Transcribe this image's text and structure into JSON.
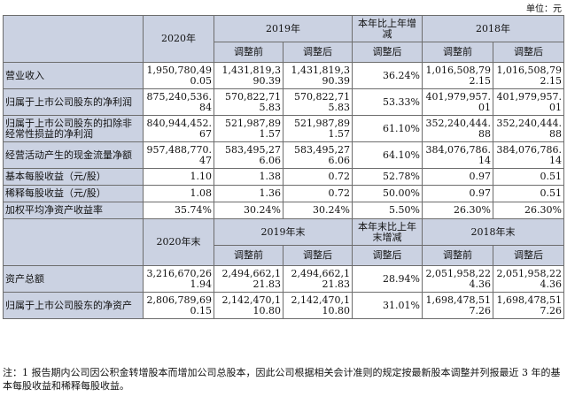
{
  "unit": "单位：元",
  "header1": {
    "y2020": "2020年",
    "y2019": "2019年",
    "change": "本年比上年增减",
    "y2018": "2018年",
    "before": "调整前",
    "after": "调整后",
    "after_change": "调整后"
  },
  "rows1": [
    {
      "label": "营业收入",
      "v2020": "1,950,780,490.05",
      "v2019b": "1,431,819,390.39",
      "v2019a": "1,431,819,390.39",
      "chg": "36.24%",
      "v2018b": "1,016,508,792.15",
      "v2018a": "1,016,508,792.15"
    },
    {
      "label": "归属于上市公司股东的净利润",
      "v2020": "875,240,536.84",
      "v2019b": "570,822,715.83",
      "v2019a": "570,822,715.83",
      "chg": "53.33%",
      "v2018b": "401,979,957.01",
      "v2018a": "401,979,957.01"
    },
    {
      "label": "归属于上市公司股东的扣除非经常性损益的净利润",
      "v2020": "840,944,452.67",
      "v2019b": "521,987,891.57",
      "v2019a": "521,987,891.57",
      "chg": "61.10%",
      "v2018b": "352,240,444.88",
      "v2018a": "352,240,444.88"
    },
    {
      "label": "经营活动产生的现金流量净额",
      "v2020": "957,488,770.47",
      "v2019b": "583,495,276.06",
      "v2019a": "583,495,276.06",
      "chg": "64.10%",
      "v2018b": "384,076,786.14",
      "v2018a": "384,076,786.14"
    },
    {
      "label": "基本每股收益（元/股）",
      "v2020": "1.10",
      "v2019b": "1.38",
      "v2019a": "0.72",
      "chg": "52.78%",
      "v2018b": "0.97",
      "v2018a": "0.51"
    },
    {
      "label": "稀释每股收益（元/股）",
      "v2020": "1.08",
      "v2019b": "1.36",
      "v2019a": "0.72",
      "chg": "50.00%",
      "v2018b": "0.97",
      "v2018a": "0.51"
    },
    {
      "label": "加权平均净资产收益率",
      "v2020": "35.74%",
      "v2019b": "30.24%",
      "v2019a": "30.24%",
      "chg": "5.50%",
      "v2018b": "26.30%",
      "v2018a": "26.30%"
    }
  ],
  "header2": {
    "y2020": "2020年末",
    "y2019": "2019年末",
    "change": "本年末比上年末增减",
    "y2018": "2018年末",
    "before": "调整前",
    "after": "调整后",
    "after_change": "调整后"
  },
  "rows2": [
    {
      "label": "资产总额",
      "v2020": "3,216,670,261.94",
      "v2019b": "2,494,662,121.83",
      "v2019a": "2,494,662,121.83",
      "chg": "28.94%",
      "v2018b": "2,051,958,224.36",
      "v2018a": "2,051,958,224.36"
    },
    {
      "label": "归属于上市公司股东的净资产",
      "v2020": "2,806,789,690.15",
      "v2019b": "2,142,470,110.80",
      "v2019a": "2,142,470,110.80",
      "chg": "31.01%",
      "v2018b": "1,698,478,517.26",
      "v2018a": "1,698,478,517.26"
    }
  ],
  "note": "注：1 报告期内公司因公积金转增股本而增加公司总股本，因此公司根据相关会计准则的规定按最新股本调整并列报最近 3 年的基本每股收益和稀释每股收益。"
}
